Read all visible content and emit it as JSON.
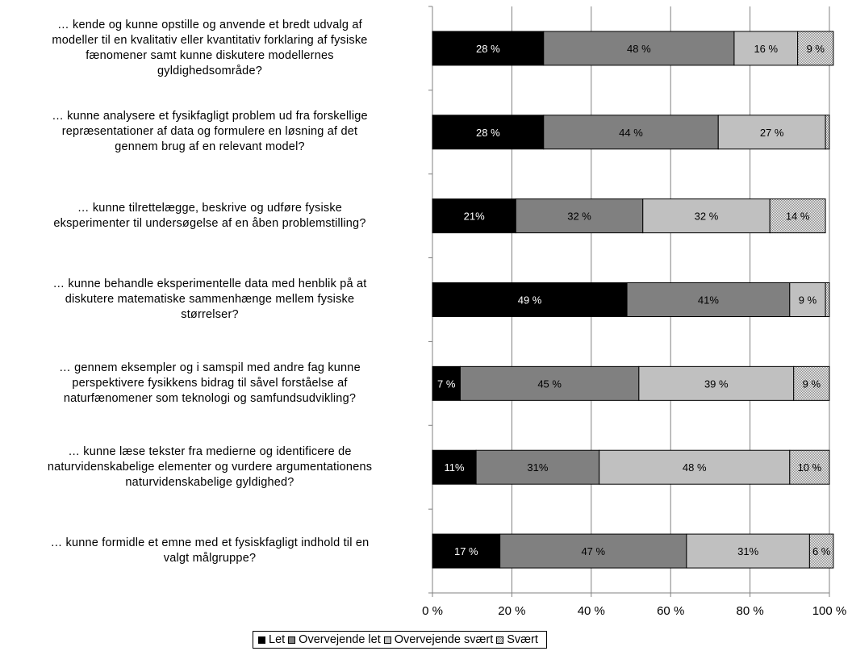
{
  "chart_data": {
    "type": "bar",
    "orientation": "horizontal",
    "stacked": "percent",
    "categories": [
      "… kende og kunne opstille og anvende et bredt udvalg af modeller til en kvalitativ eller kvantitativ forklaring af fysiske fænomener samt kunne diskutere modellernes gyldighedsområde?",
      "… kunne analysere et fysikfagligt problem ud fra forskellige repræsentationer af data og formulere en løsning af det gennem brug af en relevant model?",
      "… kunne tilrettelægge, beskrive og udføre fysiske eksperimenter til undersøgelse af en åben problemstilling?",
      "… kunne behandle eksperimentelle data med henblik på at diskutere matematiske sammenhænge mellem fysiske størrelser?",
      "… gennem eksempler og i samspil med andre fag kunne perspektivere fysikkens bidrag til såvel forståelse af naturfænomener som teknologi og samfundsudvikling?",
      "… kunne læse tekster fra medierne og identificere de naturvidenskabelige elementer og vurdere argumentationens naturvidenskabelige gyldighed?",
      "… kunne formidle et emne med et fysiskfagligt indhold til en valgt målgruppe?"
    ],
    "category_lines": [
      [
        "… kende og kunne opstille og anvende et bredt udvalg af",
        "modeller til en kvalitativ eller kvantitativ forklaring af fysiske",
        "fænomener samt kunne diskutere modellernes",
        "gyldighedsområde?"
      ],
      [
        "… kunne analysere et fysikfagligt problem ud fra forskellige",
        "repræsentationer af data og formulere en løsning af det",
        "gennem brug af en relevant model?"
      ],
      [
        "… kunne tilrettelægge, beskrive og udføre fysiske",
        "eksperimenter til undersøgelse af en åben problemstilling?"
      ],
      [
        "… kunne behandle eksperimentelle data med henblik på at",
        "diskutere matematiske sammenhænge mellem fysiske",
        "størrelser?"
      ],
      [
        "… gennem eksempler og i samspil med andre fag kunne",
        "perspektivere fysikkens bidrag til såvel forståelse af",
        "naturfænomener som teknologi og samfundsudvikling?"
      ],
      [
        "… kunne læse tekster fra medierne og identificere de",
        "naturvidenskabelige elementer og vurdere argumentationens",
        "naturvidenskabelige gyldighed?"
      ],
      [
        "… kunne formidle et emne med et fysiskfagligt indhold til en",
        "valgt målgruppe?"
      ]
    ],
    "series": [
      {
        "name": "Let",
        "color": "#000000",
        "label_color": "#ffffff",
        "pattern": "solid",
        "values": [
          28,
          28,
          21,
          49,
          7,
          11,
          17
        ],
        "labels": [
          "28 %",
          "28 %",
          "21%",
          "49 %",
          "7 %",
          "11%",
          "17 %"
        ]
      },
      {
        "name": "Overvejende let",
        "color": "#808080",
        "label_color": "#000000",
        "pattern": "solid",
        "values": [
          48,
          44,
          32,
          41,
          45,
          31,
          47
        ],
        "labels": [
          "48 %",
          "44 %",
          "32 %",
          "41%",
          "45 %",
          "31%",
          "47 %"
        ]
      },
      {
        "name": "Overvejende svært",
        "color": "#c0c0c0",
        "label_color": "#000000",
        "pattern": "solid",
        "values": [
          16,
          27,
          32,
          9,
          39,
          48,
          31
        ],
        "labels": [
          "16 %",
          "27 %",
          "32 %",
          "9 %",
          "39 %",
          "48 %",
          "31%"
        ]
      },
      {
        "name": "Svært",
        "color": "#e4e4e4",
        "label_color": "#000000",
        "pattern": "checker",
        "values": [
          9,
          1,
          14,
          1,
          9,
          10,
          6
        ],
        "labels": [
          "9 %",
          "",
          "14 %",
          "",
          "9 %",
          "10 %",
          "6 %"
        ]
      }
    ],
    "x_ticks": [
      "0 %",
      "20 %",
      "40 %",
      "60 %",
      "80 %",
      "100 %"
    ],
    "xlim": [
      0,
      100
    ],
    "grid": true,
    "legend": "bottom"
  }
}
